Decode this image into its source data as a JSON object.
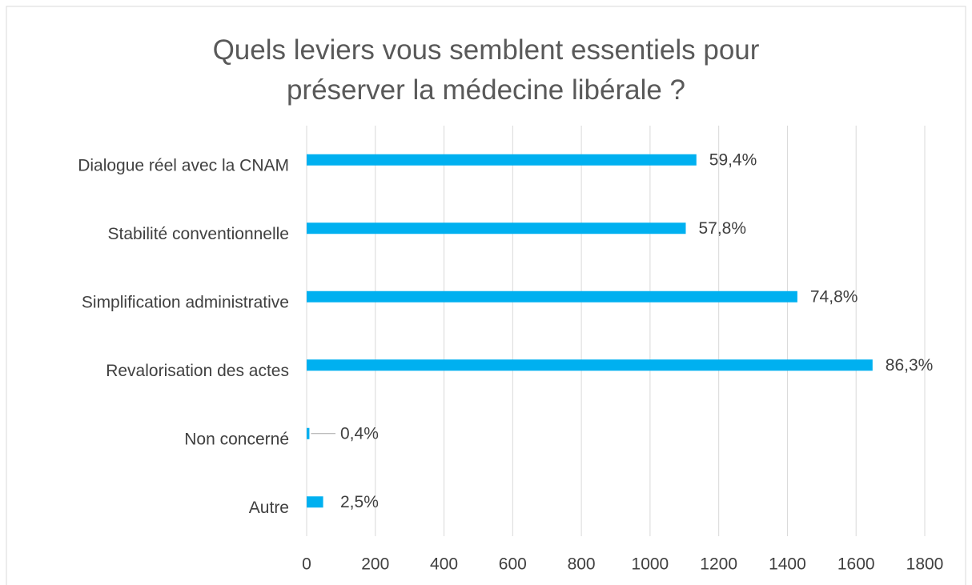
{
  "chart_data": {
    "type": "bar",
    "orientation": "horizontal",
    "title": "Quels leviers vous semblent essentiels pour préserver la médecine libérale ?",
    "categories": [
      "Dialogue réel avec la CNAM",
      "Stabilité conventionnelle",
      "Simplification administrative",
      "Revalorisation des actes",
      "Non concerné",
      "Autre"
    ],
    "values": [
      1135,
      1104,
      1429,
      1648,
      8,
      48
    ],
    "value_labels": [
      "59,4%",
      "57,8%",
      "74,8%",
      "86,3%",
      "0,4%",
      "2,5%"
    ],
    "color": "#00b0f0",
    "xlim": [
      0,
      1800
    ],
    "xticks": [
      0,
      200,
      400,
      600,
      800,
      1000,
      1200,
      1400,
      1600,
      1800
    ],
    "grid": true
  }
}
